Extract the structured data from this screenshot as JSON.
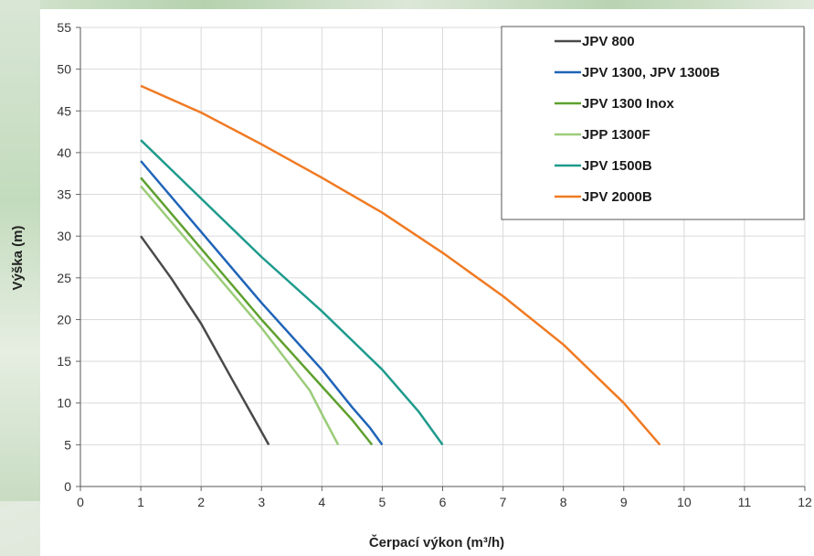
{
  "chart_data": {
    "type": "line",
    "title": "",
    "xlabel": "Čerpací výkon (m³/h)",
    "ylabel": "Výška (m)",
    "xlim": [
      0,
      12
    ],
    "ylim": [
      0,
      55
    ],
    "xticks": [
      0,
      1,
      2,
      3,
      4,
      5,
      6,
      7,
      8,
      9,
      10,
      11,
      12
    ],
    "yticks": [
      0,
      5,
      10,
      15,
      20,
      25,
      30,
      35,
      40,
      45,
      50,
      55
    ],
    "grid": true,
    "legend_position": "top-right",
    "series": [
      {
        "name": "JPV 800",
        "color": "#4a4a4a",
        "x": [
          1,
          1.5,
          2,
          2.5,
          2.85,
          3.12
        ],
        "y": [
          30,
          25,
          19.5,
          13,
          8.5,
          5
        ]
      },
      {
        "name": "JPV 1300, JPV 1300B",
        "color": "#1f64b8",
        "x": [
          1,
          2,
          3,
          4,
          4.5,
          4.8,
          5.0
        ],
        "y": [
          39,
          30.5,
          22,
          14,
          9.5,
          7,
          5
        ]
      },
      {
        "name": "JPV 1300 Inox",
        "color": "#5ea02f",
        "x": [
          1,
          2,
          3,
          4,
          4.5,
          4.83
        ],
        "y": [
          37,
          28.5,
          20,
          12,
          8,
          5
        ]
      },
      {
        "name": "JPP 1300F",
        "color": "#9ccc7a",
        "x": [
          1,
          2,
          3,
          3.8,
          4.05,
          4.27
        ],
        "y": [
          36,
          27.5,
          19,
          11.5,
          8,
          5
        ]
      },
      {
        "name": "JPV 1500B",
        "color": "#1e9b8c",
        "x": [
          1,
          2,
          3,
          4,
          5,
          5.6,
          6.0
        ],
        "y": [
          41.5,
          34.5,
          27.5,
          21,
          14,
          9,
          5
        ]
      },
      {
        "name": "JPV 2000B",
        "color": "#f07a22",
        "x": [
          1,
          2,
          3,
          4,
          5,
          6,
          7,
          8,
          9,
          9.6
        ],
        "y": [
          48,
          44.8,
          41,
          37,
          32.8,
          28,
          22.8,
          17,
          10,
          5
        ]
      }
    ]
  }
}
